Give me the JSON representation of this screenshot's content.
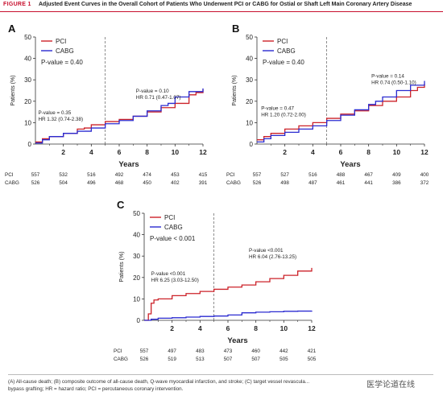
{
  "figure": {
    "label": "FIGURE 1",
    "title": "Adjusted Event Curves in the Overall Cohort of Patients Who Underwent PCI or CABG for Ostial or Shaft Left Main Coronary Artery Disease"
  },
  "caption": {
    "line1": "(A) All-cause death; (B) composite outcome of all-cause death, Q-wave myocardial infarction, and stroke; (C) target vessel revascula...",
    "line2": "bypass grafting; HR = hazard ratio; PCI = percutaneous coronary intervention."
  },
  "watermark": "医学论道在线",
  "colors": {
    "pci": "#cc2229",
    "cabg": "#2b2bd0",
    "axis": "#333333",
    "divider": "#444444"
  },
  "chart_data": [
    {
      "panel": "A",
      "type": "line",
      "xlabel": "Years",
      "ylabel": "Patients (%)",
      "xlim": [
        0,
        12
      ],
      "ylim": [
        0,
        50
      ],
      "xticks": [
        2,
        4,
        6,
        8,
        10,
        12
      ],
      "yticks": [
        0,
        10,
        20,
        30,
        40,
        50
      ],
      "divider_x": 5,
      "legend": {
        "placement": "top-left",
        "entries": [
          "PCI",
          "CABG"
        ],
        "pvalue": "P-value = 0.40"
      },
      "annotations": [
        {
          "line1": "P-value = 0.35",
          "line2": "HR 1.32 (0.74-2.38)",
          "x": 0.2,
          "y": 14
        },
        {
          "line1": "P-value = 0.10",
          "line2": "HR 0.71 (0.47-1.07)",
          "x": 7.2,
          "y": 24
        }
      ],
      "series": [
        {
          "name": "PCI",
          "points": [
            [
              0,
              1
            ],
            [
              0.5,
              2.5
            ],
            [
              1,
              3.5
            ],
            [
              2,
              5
            ],
            [
              3,
              7
            ],
            [
              3.5,
              7.5
            ],
            [
              4,
              9
            ],
            [
              5,
              10.5
            ],
            [
              6,
              11.5
            ],
            [
              7,
              13
            ],
            [
              8,
              15
            ],
            [
              9,
              17
            ],
            [
              10,
              19
            ],
            [
              11,
              23
            ],
            [
              11.5,
              24
            ],
            [
              12,
              25.5
            ]
          ]
        },
        {
          "name": "CABG",
          "points": [
            [
              0,
              0.5
            ],
            [
              0.5,
              2
            ],
            [
              1,
              3.5
            ],
            [
              2,
              5
            ],
            [
              3,
              6
            ],
            [
              4,
              7.5
            ],
            [
              5,
              9.5
            ],
            [
              6,
              11
            ],
            [
              7,
              13
            ],
            [
              8,
              15.5
            ],
            [
              9,
              18
            ],
            [
              9.5,
              19
            ],
            [
              10,
              22
            ],
            [
              11,
              24.5
            ],
            [
              12,
              26
            ]
          ]
        }
      ],
      "risk_table": {
        "rows": [
          {
            "label": "PCI",
            "values": [
              557,
              532,
              516,
              492,
              474,
              453,
              415
            ]
          },
          {
            "label": "CABG",
            "values": [
              526,
              504,
              496,
              468,
              450,
              402,
              391
            ]
          }
        ]
      }
    },
    {
      "panel": "B",
      "type": "line",
      "xlabel": "Years",
      "ylabel": "Patients (%)",
      "xlim": [
        0,
        12
      ],
      "ylim": [
        0,
        50
      ],
      "xticks": [
        2,
        4,
        6,
        8,
        10,
        12
      ],
      "yticks": [
        0,
        10,
        20,
        30,
        40,
        50
      ],
      "divider_x": 5,
      "legend": {
        "placement": "top-left",
        "entries": [
          "PCI",
          "CABG"
        ],
        "pvalue": "P-value = 0.40"
      },
      "annotations": [
        {
          "line1": "P-value = 0.47",
          "line2": "HR 1.20 (0.72-2.00)",
          "x": 0.3,
          "y": 16
        },
        {
          "line1": "P-value = 0.14",
          "line2": "HR 0.74 (0.50-1.10)",
          "x": 8.2,
          "y": 31
        }
      ],
      "series": [
        {
          "name": "PCI",
          "points": [
            [
              0,
              2
            ],
            [
              0.5,
              3.5
            ],
            [
              1,
              5
            ],
            [
              2,
              7
            ],
            [
              3,
              8.5
            ],
            [
              4,
              10
            ],
            [
              5,
              12
            ],
            [
              6,
              14
            ],
            [
              7,
              15.5
            ],
            [
              8,
              18
            ],
            [
              9,
              20
            ],
            [
              10,
              22
            ],
            [
              11,
              25
            ],
            [
              11.5,
              26.5
            ],
            [
              12,
              28
            ]
          ]
        },
        {
          "name": "CABG",
          "points": [
            [
              0,
              1
            ],
            [
              0.5,
              2.5
            ],
            [
              1,
              4
            ],
            [
              2,
              5.5
            ],
            [
              3,
              7
            ],
            [
              4,
              8.5
            ],
            [
              5,
              11
            ],
            [
              6,
              13.5
            ],
            [
              7,
              16
            ],
            [
              8,
              18.5
            ],
            [
              8.5,
              20
            ],
            [
              9,
              22
            ],
            [
              10,
              25
            ],
            [
              11,
              27.5
            ],
            [
              12,
              29.5
            ]
          ]
        }
      ],
      "risk_table": {
        "rows": [
          {
            "label": "PCI",
            "values": [
              557,
              527,
              516,
              488,
              467,
              409,
              400
            ]
          },
          {
            "label": "CABG",
            "values": [
              526,
              498,
              487,
              461,
              441,
              386,
              372
            ]
          }
        ]
      }
    },
    {
      "panel": "C",
      "type": "line",
      "xlabel": "Years",
      "ylabel": "Patients (%)",
      "xlim": [
        0,
        12
      ],
      "ylim": [
        0,
        50
      ],
      "xticks": [
        2,
        4,
        6,
        8,
        10,
        12
      ],
      "yticks": [
        0,
        10,
        20,
        30,
        40,
        50
      ],
      "divider_x": 5,
      "legend": {
        "placement": "top-left",
        "entries": [
          "PCI",
          "CABG"
        ],
        "pvalue": "P-value < 0.001"
      },
      "annotations": [
        {
          "line1": "P-value <0.001",
          "line2": "HR 6.25 (3.03-12.50)",
          "x": 0.5,
          "y": 21
        },
        {
          "line1": "P-value <0.001",
          "line2": "HR 6.04 (2.76-13.25)",
          "x": 7.5,
          "y": 32
        }
      ],
      "series": [
        {
          "name": "PCI",
          "points": [
            [
              0,
              0
            ],
            [
              0.3,
              3
            ],
            [
              0.5,
              8
            ],
            [
              0.7,
              9.5
            ],
            [
              1,
              10
            ],
            [
              2,
              11.5
            ],
            [
              3,
              12.5
            ],
            [
              4,
              13.5
            ],
            [
              5,
              14.5
            ],
            [
              6,
              15.5
            ],
            [
              7,
              16.5
            ],
            [
              8,
              18
            ],
            [
              9,
              19.5
            ],
            [
              10,
              21
            ],
            [
              11,
              23
            ],
            [
              12,
              24.5
            ]
          ]
        },
        {
          "name": "CABG",
          "points": [
            [
              0,
              0
            ],
            [
              0.5,
              0.5
            ],
            [
              1,
              1
            ],
            [
              2,
              1.2
            ],
            [
              3,
              1.5
            ],
            [
              4,
              1.8
            ],
            [
              5,
              2
            ],
            [
              6,
              2.5
            ],
            [
              7,
              3.5
            ],
            [
              8,
              3.8
            ],
            [
              9,
              4
            ],
            [
              10,
              4.2
            ],
            [
              11,
              4.3
            ],
            [
              12,
              4.5
            ]
          ]
        }
      ],
      "risk_table": {
        "rows": [
          {
            "label": "PCI",
            "values": [
              557,
              497,
              483,
              473,
              460,
              442,
              421
            ]
          },
          {
            "label": "CABG",
            "values": [
              526,
              519,
              513,
              507,
              507,
              505,
              505
            ]
          }
        ]
      }
    }
  ]
}
